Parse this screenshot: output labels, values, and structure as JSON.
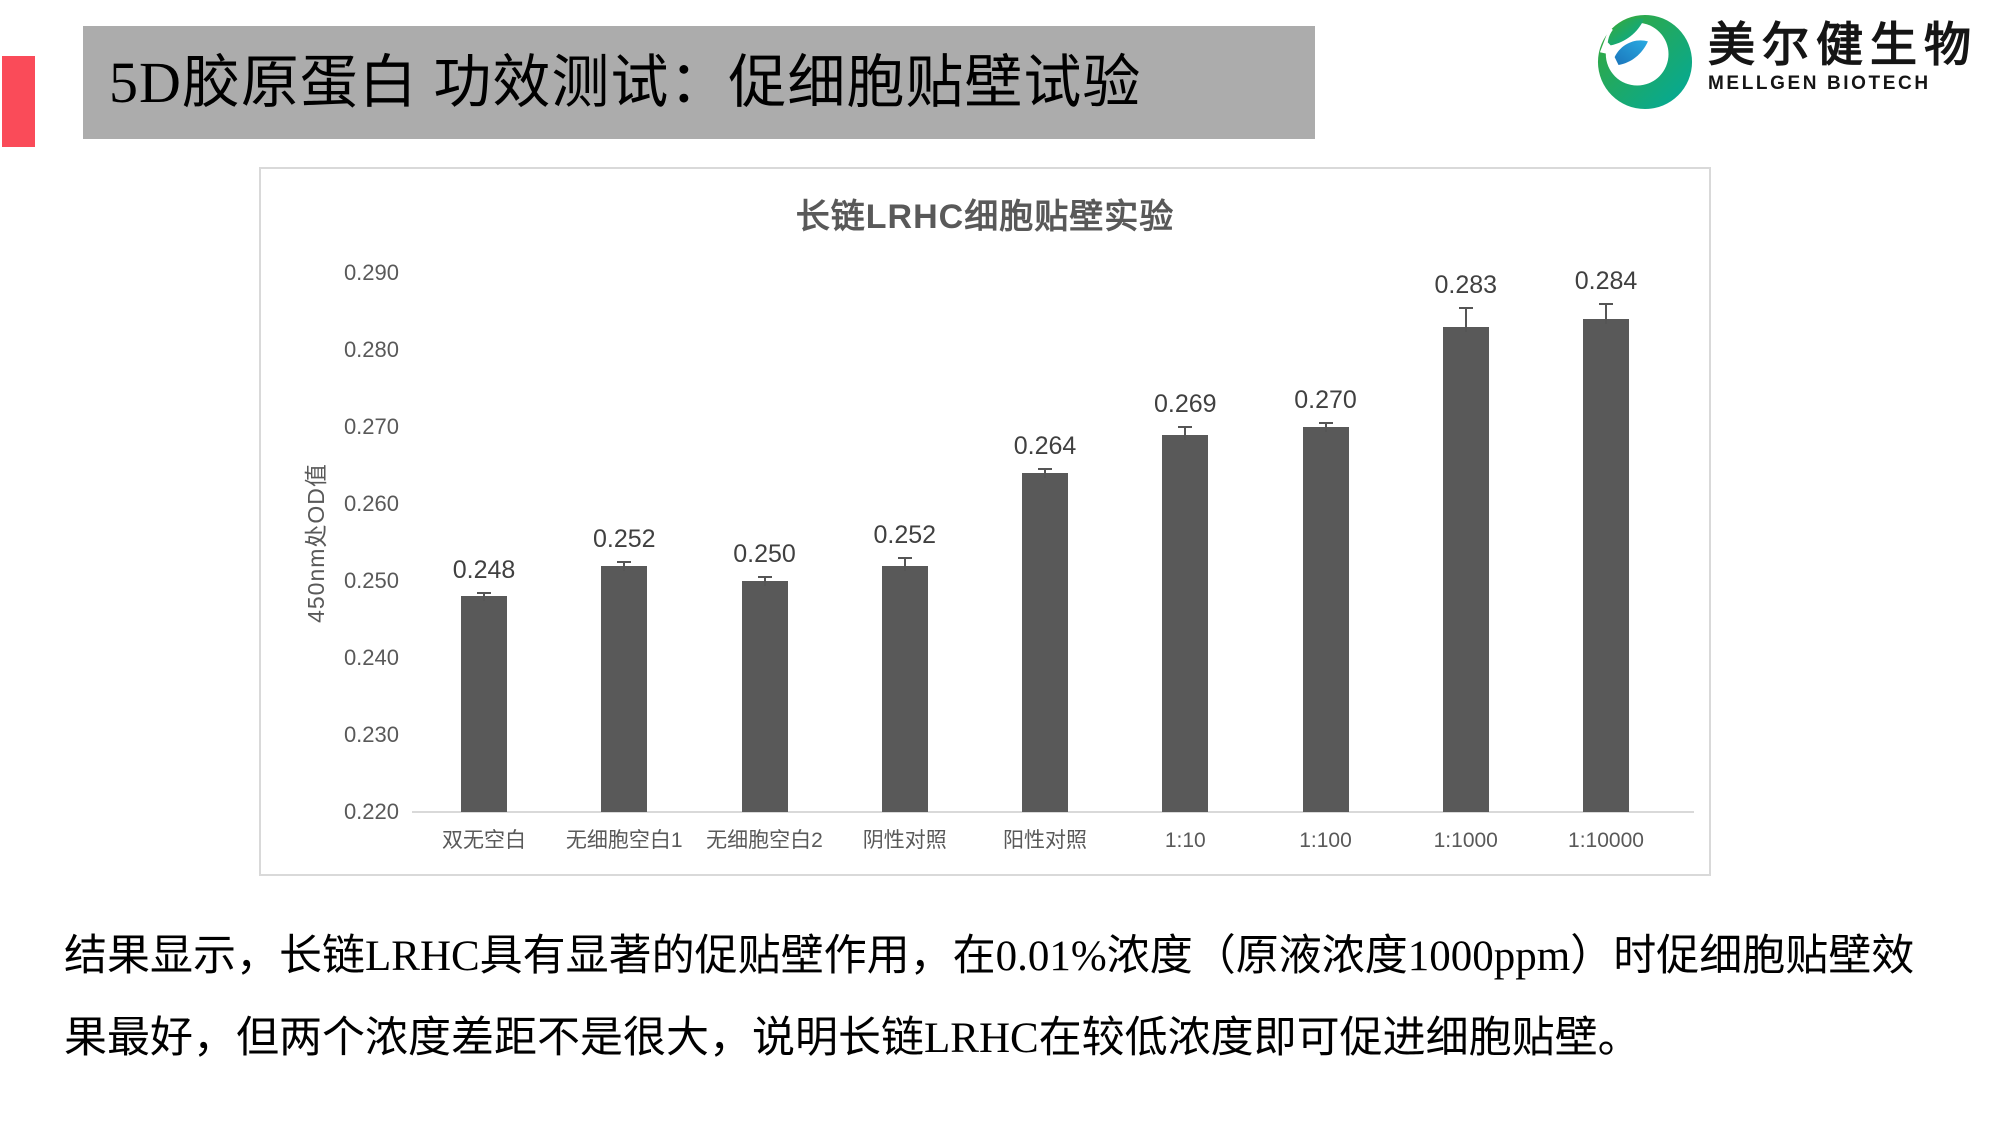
{
  "slide": {
    "title": "5D胶原蛋白 功效测试：促细胞贴壁试验"
  },
  "logo": {
    "company_cn": "美尔健生物",
    "company_en": "MELLGEN BIOTECH"
  },
  "colors": {
    "accent_red": "#fa4b59",
    "title_bar_gray": "#acacac",
    "bar_gray": "#595959",
    "axis_gray": "#d9d9d9",
    "logo_green": "#39a935",
    "logo_teal": "#00a99d",
    "logo_blue": "#29abe2",
    "logo_blue_dark": "#1b75bb"
  },
  "chart_data": {
    "type": "bar",
    "title": "长链LRHC细胞贴壁实验",
    "xlabel": "",
    "ylabel": "450nm处OD值",
    "categories": [
      "双无空白",
      "无细胞空白1",
      "无细胞空白2",
      "阴性对照",
      "阳性对照",
      "1:10",
      "1:100",
      "1:1000",
      "1:10000"
    ],
    "values": [
      0.248,
      0.252,
      0.25,
      0.252,
      0.264,
      0.269,
      0.27,
      0.283,
      0.284
    ],
    "data_labels": [
      "0.248",
      "0.252",
      "0.250",
      "0.252",
      "0.264",
      "0.269",
      "0.270",
      "0.283",
      "0.284"
    ],
    "error_bars": [
      0.0005,
      0.0005,
      0.0005,
      0.001,
      0.0005,
      0.001,
      0.0005,
      0.0025,
      0.002
    ],
    "ylim": [
      0.22,
      0.29
    ],
    "ytick_step": 0.01,
    "yticks": [
      "0.220",
      "0.230",
      "0.240",
      "0.250",
      "0.260",
      "0.270",
      "0.280",
      "0.290"
    ],
    "grid": false,
    "legend": "none",
    "bar_color": "#595959"
  },
  "summary": {
    "lines": [
      "结果显示，长链LRHC具有显著的促贴壁作用，在0.01%浓度（原液浓度1000ppm）时促细胞贴壁效",
      "果最好，但两个浓度差距不是很大，说明长链LRHC在较低浓度即可促进细胞贴壁。"
    ],
    "full_text": "结果显示，长链LRHC具有显著的促贴壁作用，在0.01%浓度（原液浓度1000ppm）时促细胞贴壁效果最好，但两个浓度差距不是很大，说明长链LRHC在较低浓度即可促进细胞贴壁。"
  }
}
